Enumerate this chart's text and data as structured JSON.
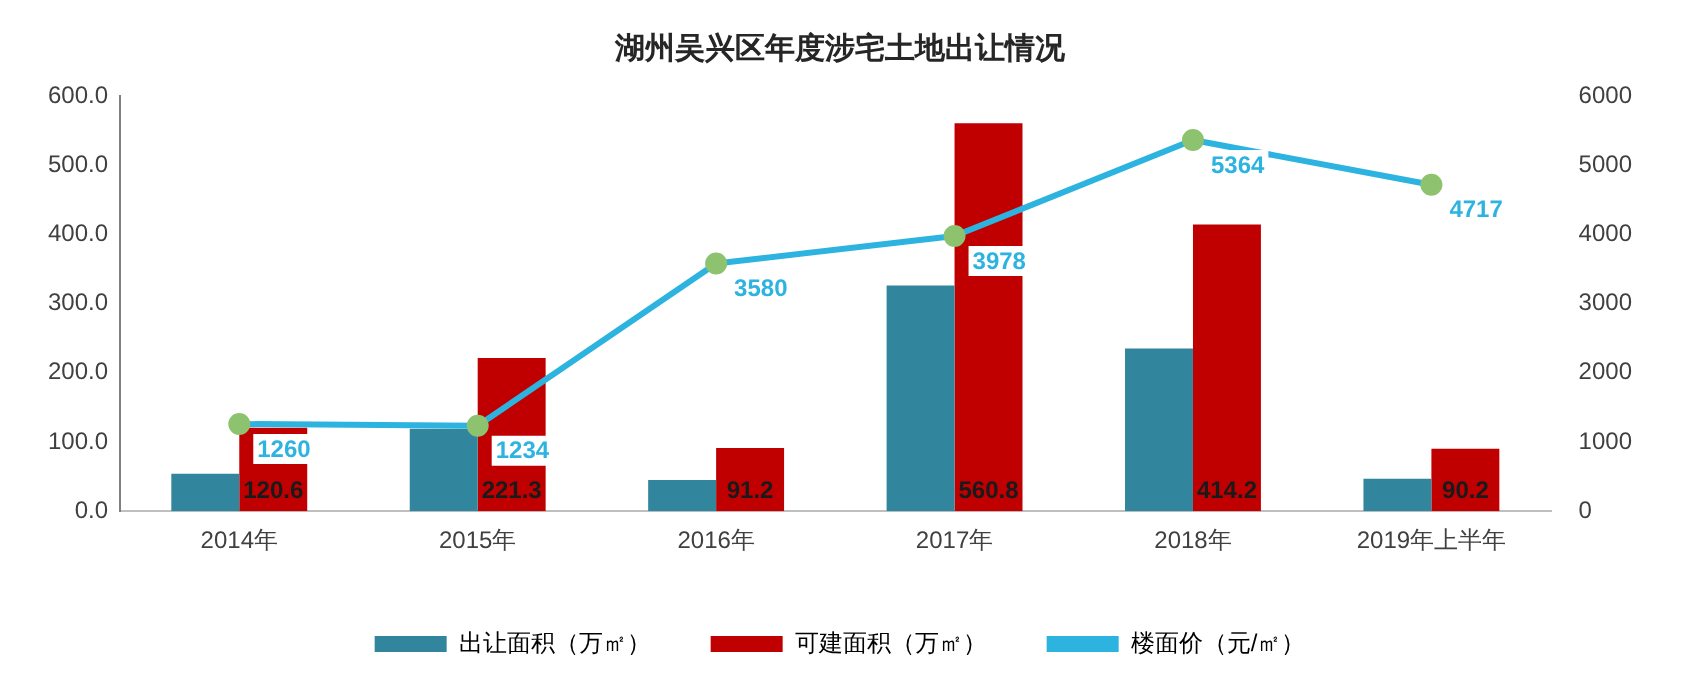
{
  "chart_data": {
    "type": "bar",
    "title": "湖州吴兴区年度涉宅土地出让情况",
    "categories": [
      "2014年",
      "2015年",
      "2016年",
      "2017年",
      "2018年",
      "2019年上半年"
    ],
    "series": [
      {
        "name": "出让面积（万㎡）",
        "color": "#31859c",
        "values": [
          54,
          119,
          45,
          326,
          235,
          47
        ]
      },
      {
        "name": "可建面积（万㎡）",
        "color": "#c00000",
        "values": [
          120.6,
          221.3,
          91.2,
          560.8,
          414.2,
          90.2
        ],
        "value_labels": [
          "120.6",
          "221.3",
          "91.2",
          "560.8",
          "414.2",
          "90.2"
        ]
      },
      {
        "name": "楼面价（元/㎡）",
        "type": "line",
        "axis": "y2",
        "color": "#2db3e0",
        "marker": "circle",
        "values": [
          1260,
          1234,
          3580,
          3978,
          5364,
          4717
        ],
        "value_labels": [
          "1260",
          "1234",
          "3580",
          "3978",
          "5364",
          "4717"
        ]
      }
    ],
    "ylim": [
      0,
      600
    ],
    "yticks": [
      {
        "value": 0,
        "label": "0.0"
      },
      {
        "value": 100,
        "label": "100.0"
      },
      {
        "value": 200,
        "label": "200.0"
      },
      {
        "value": 300,
        "label": "300.0"
      },
      {
        "value": 400,
        "label": "400.0"
      },
      {
        "value": 500,
        "label": "500.0"
      },
      {
        "value": 600,
        "label": "600.0"
      }
    ],
    "y2lim": [
      0,
      6000
    ],
    "y2ticks": [
      0,
      1000,
      2000,
      3000,
      4000,
      5000,
      6000
    ],
    "grid": false,
    "legend": "bottom"
  }
}
